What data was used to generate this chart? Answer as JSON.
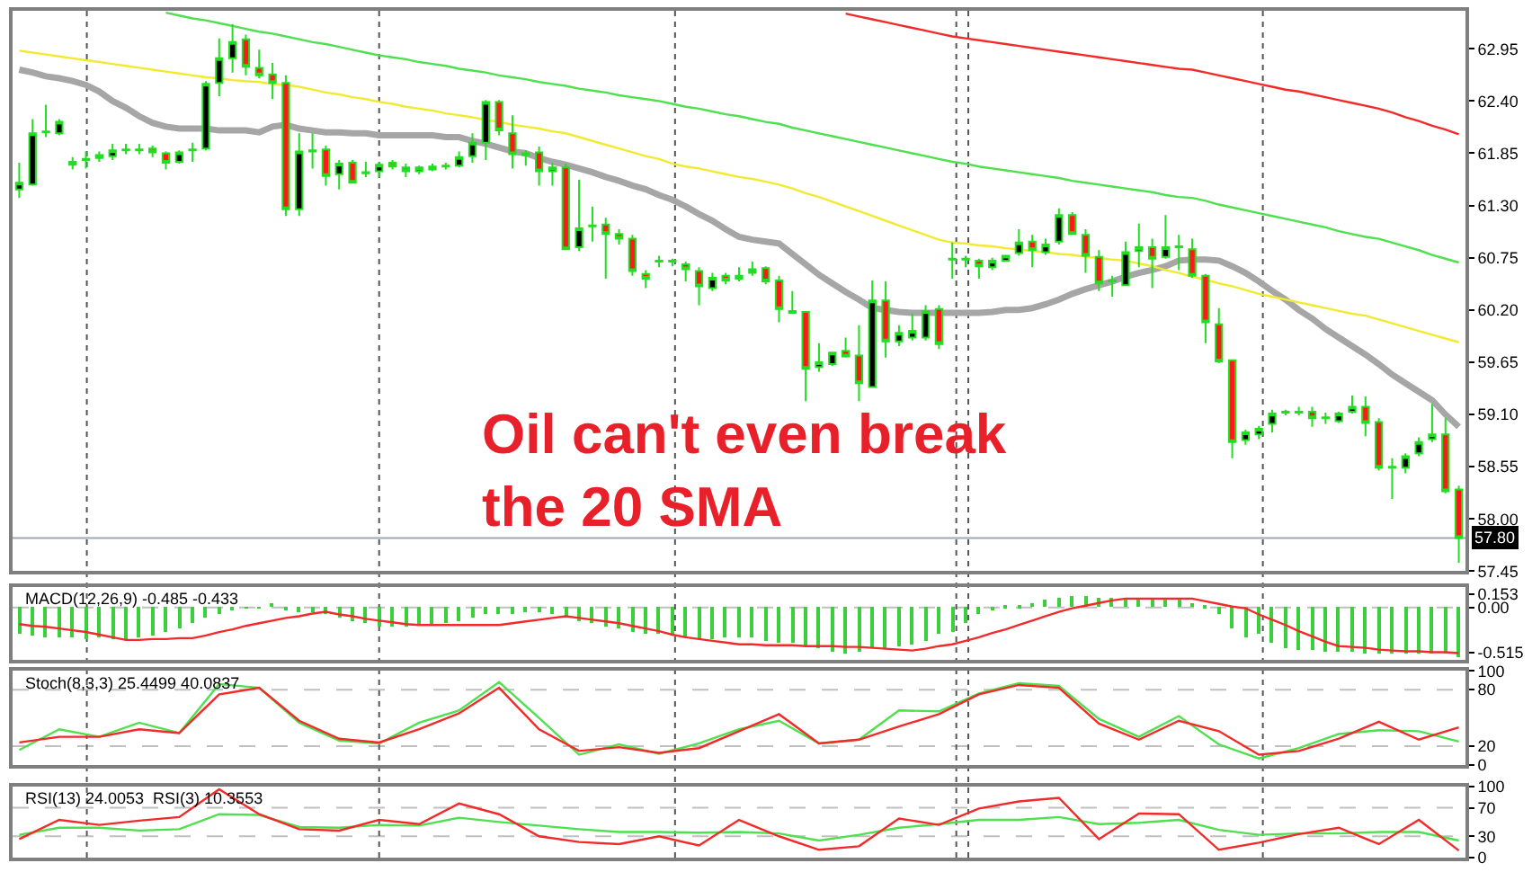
{
  "chart_data": [
    {
      "type": "candlestick",
      "color": "#22dd22",
      "tick_labels": "y",
      "categories": [
        null,
        null,
        null,
        null,
        null,
        null,
        null,
        null,
        null,
        null,
        null,
        null,
        null,
        null,
        null,
        null,
        null,
        null,
        null,
        null,
        null,
        null,
        null,
        null,
        null,
        null,
        null,
        null,
        null,
        null,
        null,
        null,
        null,
        null,
        null,
        null,
        null,
        null,
        null,
        null,
        null,
        null,
        null,
        null,
        null,
        null,
        null,
        null,
        null,
        null,
        null,
        null,
        null,
        null,
        null,
        null,
        null,
        null,
        null,
        null,
        null,
        null,
        null,
        null,
        null,
        null,
        null,
        null,
        null,
        null,
        null,
        null,
        null,
        null,
        null,
        null,
        null,
        null,
        null,
        null,
        null,
        null,
        null,
        null,
        null,
        null,
        null,
        null,
        null,
        null,
        null,
        null,
        null,
        null,
        null,
        null,
        null,
        null,
        null,
        null,
        null,
        null,
        null,
        null,
        null,
        null,
        null,
        null,
        null
      ],
      "ohlc": [
        [
          61.47,
          61.75,
          61.38,
          61.54
        ],
        [
          61.52,
          62.21,
          61.51,
          62.06
        ],
        [
          62.07,
          62.36,
          62.02,
          62.08
        ],
        [
          62.06,
          62.21,
          62.04,
          62.18
        ],
        [
          61.73,
          61.81,
          61.68,
          61.76
        ],
        [
          61.78,
          61.87,
          61.69,
          61.79
        ],
        [
          61.8,
          61.87,
          61.76,
          61.83
        ],
        [
          61.82,
          61.95,
          61.78,
          61.88
        ],
        [
          61.88,
          61.95,
          61.84,
          61.89
        ],
        [
          61.88,
          61.95,
          61.84,
          61.89
        ],
        [
          61.9,
          61.93,
          61.81,
          61.86
        ],
        [
          61.85,
          61.87,
          61.68,
          61.75
        ],
        [
          61.76,
          61.88,
          61.74,
          61.86
        ],
        [
          61.88,
          61.96,
          61.76,
          61.89
        ],
        [
          61.9,
          62.61,
          61.88,
          62.58
        ],
        [
          62.59,
          63.06,
          62.45,
          62.85
        ],
        [
          62.85,
          63.21,
          62.7,
          63.02
        ],
        [
          63.05,
          63.1,
          62.67,
          62.76
        ],
        [
          62.75,
          62.94,
          62.64,
          62.67
        ],
        [
          62.68,
          62.8,
          62.42,
          62.59
        ],
        [
          62.59,
          62.67,
          61.19,
          61.26
        ],
        [
          61.26,
          62.06,
          61.19,
          61.87
        ],
        [
          61.87,
          62.06,
          61.69,
          61.88
        ],
        [
          61.89,
          61.93,
          61.51,
          61.61
        ],
        [
          61.63,
          61.78,
          61.47,
          61.74
        ],
        [
          61.75,
          61.78,
          61.54,
          61.54
        ],
        [
          61.64,
          61.76,
          61.6,
          61.65
        ],
        [
          61.66,
          61.76,
          61.6,
          61.73
        ],
        [
          61.75,
          61.78,
          61.68,
          61.71
        ],
        [
          61.7,
          61.74,
          61.6,
          61.66
        ],
        [
          61.66,
          61.72,
          61.63,
          61.7
        ],
        [
          61.71,
          61.74,
          61.66,
          61.68
        ],
        [
          61.71,
          61.75,
          61.68,
          61.72
        ],
        [
          61.72,
          61.87,
          61.7,
          61.81
        ],
        [
          61.82,
          62.06,
          61.75,
          61.96
        ],
        [
          61.96,
          62.41,
          61.78,
          62.39
        ],
        [
          62.39,
          62.41,
          62.04,
          62.09
        ],
        [
          62.06,
          62.25,
          61.69,
          61.84
        ],
        [
          61.83,
          61.88,
          61.72,
          61.85
        ],
        [
          61.86,
          61.92,
          61.51,
          61.66
        ],
        [
          61.66,
          61.75,
          61.51,
          61.7
        ],
        [
          61.7,
          61.74,
          60.83,
          60.84
        ],
        [
          60.86,
          61.57,
          60.82,
          61.06
        ],
        [
          61.08,
          61.29,
          60.92,
          61.09
        ],
        [
          61.1,
          61.17,
          60.53,
          61.0
        ],
        [
          61.0,
          61.05,
          60.89,
          60.95
        ],
        [
          60.95,
          60.99,
          60.56,
          60.61
        ],
        [
          60.58,
          60.62,
          60.43,
          60.53
        ],
        [
          60.71,
          60.77,
          60.65,
          60.72
        ],
        [
          60.71,
          60.74,
          60.66,
          60.72
        ],
        [
          60.68,
          60.71,
          60.5,
          60.63
        ],
        [
          60.61,
          60.65,
          60.25,
          60.45
        ],
        [
          60.43,
          60.59,
          60.4,
          60.54
        ],
        [
          60.56,
          60.59,
          60.47,
          60.51
        ],
        [
          60.53,
          60.65,
          60.5,
          60.56
        ],
        [
          60.59,
          60.71,
          60.56,
          60.63
        ],
        [
          60.64,
          60.66,
          60.47,
          60.5
        ],
        [
          60.51,
          60.56,
          60.07,
          60.21
        ],
        [
          60.19,
          60.4,
          60.16,
          60.17
        ],
        [
          60.18,
          60.19,
          59.24,
          59.58
        ],
        [
          59.6,
          59.85,
          59.55,
          59.65
        ],
        [
          59.63,
          59.76,
          59.61,
          59.75
        ],
        [
          59.77,
          59.91,
          59.7,
          59.71
        ],
        [
          59.72,
          60.04,
          59.24,
          59.43
        ],
        [
          59.39,
          60.51,
          59.39,
          60.3
        ],
        [
          60.3,
          60.5,
          59.7,
          59.87
        ],
        [
          59.87,
          60.04,
          59.82,
          59.96
        ],
        [
          59.91,
          60.16,
          59.88,
          59.98
        ],
        [
          59.91,
          60.25,
          59.88,
          60.19
        ],
        [
          60.21,
          60.25,
          59.79,
          59.84
        ],
        [
          60.73,
          60.91,
          60.53,
          60.74
        ],
        [
          60.73,
          60.77,
          60.65,
          60.74
        ],
        [
          60.72,
          60.74,
          60.53,
          60.66
        ],
        [
          60.65,
          60.75,
          60.62,
          60.72
        ],
        [
          60.72,
          60.78,
          60.71,
          60.77
        ],
        [
          60.8,
          61.05,
          60.77,
          60.91
        ],
        [
          60.92,
          60.99,
          60.65,
          60.83
        ],
        [
          60.81,
          60.95,
          60.78,
          60.89
        ],
        [
          60.92,
          61.27,
          60.89,
          61.2
        ],
        [
          61.2,
          61.23,
          60.99,
          61.0
        ],
        [
          60.99,
          61.05,
          60.59,
          60.77
        ],
        [
          60.76,
          60.83,
          60.4,
          60.48
        ],
        [
          60.5,
          60.56,
          60.34,
          60.51
        ],
        [
          60.46,
          60.92,
          60.46,
          60.81
        ],
        [
          60.82,
          61.11,
          60.65,
          60.86
        ],
        [
          60.86,
          60.95,
          60.43,
          60.74
        ],
        [
          60.76,
          61.2,
          60.74,
          60.86
        ],
        [
          60.86,
          60.99,
          60.62,
          60.87
        ],
        [
          60.84,
          60.95,
          60.54,
          60.56
        ],
        [
          60.56,
          60.58,
          59.85,
          60.07
        ],
        [
          60.05,
          60.22,
          59.64,
          59.66
        ],
        [
          59.67,
          59.68,
          58.64,
          58.81
        ],
        [
          58.83,
          58.94,
          58.78,
          58.91
        ],
        [
          58.89,
          58.98,
          58.84,
          58.95
        ],
        [
          59.0,
          59.15,
          58.91,
          59.11
        ],
        [
          59.12,
          59.15,
          59.09,
          59.13
        ],
        [
          59.12,
          59.18,
          59.09,
          59.13
        ],
        [
          59.13,
          59.18,
          58.97,
          59.06
        ],
        [
          59.06,
          59.12,
          59.0,
          59.07
        ],
        [
          59.03,
          59.13,
          59.01,
          59.11
        ],
        [
          59.13,
          59.3,
          59.11,
          59.18
        ],
        [
          59.18,
          59.29,
          58.87,
          59.01
        ],
        [
          59.02,
          59.06,
          58.51,
          58.54
        ],
        [
          58.54,
          58.64,
          58.21,
          58.55
        ],
        [
          58.54,
          58.69,
          58.48,
          58.66
        ],
        [
          58.69,
          58.86,
          58.66,
          58.81
        ],
        [
          58.84,
          59.21,
          58.81,
          58.89
        ],
        [
          58.89,
          59.06,
          58.27,
          58.29
        ],
        [
          58.31,
          58.35,
          57.54,
          57.8
        ]
      ],
      "series": [
        {
          "type": "line",
          "color": "#a6a6a6",
          "values": [
            62.73,
            62.7,
            62.66,
            62.64,
            62.61,
            62.57,
            62.5,
            62.4,
            62.33,
            62.24,
            62.17,
            62.13,
            62.11,
            62.11,
            62.11,
            62.09,
            62.09,
            62.09,
            62.07,
            62.13,
            62.15,
            62.11,
            62.09,
            62.07,
            62.07,
            62.06,
            62.06,
            62.04,
            62.04,
            62.04,
            62.04,
            62.04,
            62.02,
            62.02,
            61.98,
            61.95,
            61.91,
            61.87,
            61.85,
            61.8,
            61.76,
            61.73,
            61.69,
            61.65,
            61.6,
            61.56,
            61.51,
            61.47,
            61.41,
            61.36,
            61.29,
            61.21,
            61.14,
            61.05,
            60.97,
            60.94,
            60.92,
            60.9,
            60.79,
            60.68,
            60.57,
            60.48,
            60.39,
            60.31,
            60.22,
            60.2,
            60.18,
            60.17,
            60.17,
            60.17,
            60.17,
            60.17,
            60.17,
            60.18,
            60.2,
            60.2,
            60.22,
            60.26,
            60.31,
            60.37,
            60.42,
            60.46,
            60.5,
            60.55,
            60.59,
            60.62,
            60.66,
            60.72,
            60.73,
            60.73,
            60.72,
            60.66,
            60.59,
            60.5,
            60.4,
            60.31,
            60.2,
            60.11,
            60.0,
            59.91,
            59.82,
            59.73,
            59.63,
            59.52,
            59.43,
            59.34,
            59.25,
            59.1,
            58.97
          ]
        },
        {
          "type": "line",
          "color": "#f2ea30",
          "values": [
            62.93,
            62.91,
            62.89,
            62.87,
            62.85,
            62.83,
            62.81,
            62.79,
            62.77,
            62.75,
            62.73,
            62.71,
            62.69,
            62.67,
            62.65,
            62.64,
            62.62,
            62.61,
            62.6,
            62.58,
            62.57,
            62.55,
            62.52,
            62.49,
            62.47,
            62.44,
            62.42,
            62.39,
            62.37,
            62.34,
            62.32,
            62.3,
            62.27,
            62.25,
            62.23,
            62.2,
            62.18,
            62.15,
            62.13,
            62.11,
            62.08,
            62.06,
            62.02,
            61.98,
            61.94,
            61.9,
            61.86,
            61.82,
            61.79,
            61.74,
            61.71,
            61.69,
            61.66,
            61.63,
            61.6,
            61.58,
            61.55,
            61.52,
            61.48,
            61.43,
            61.39,
            61.34,
            61.29,
            61.24,
            61.19,
            61.14,
            61.09,
            61.04,
            60.99,
            60.94,
            60.91,
            60.9,
            60.88,
            60.87,
            60.85,
            60.84,
            60.82,
            60.81,
            60.79,
            60.78,
            60.76,
            60.75,
            60.73,
            60.72,
            60.69,
            60.66,
            60.62,
            60.59,
            60.55,
            60.52,
            60.48,
            60.45,
            60.41,
            60.37,
            60.34,
            60.31,
            60.28,
            60.25,
            60.22,
            60.19,
            60.16,
            60.14,
            60.1,
            60.06,
            60.02,
            59.98,
            59.94,
            59.9,
            59.86
          ]
        },
        {
          "type": "line",
          "color": "#4ee04e",
          "values": [
            null,
            null,
            null,
            null,
            null,
            null,
            null,
            null,
            null,
            null,
            null,
            63.33,
            63.3,
            63.27,
            63.25,
            63.22,
            63.19,
            63.16,
            63.13,
            63.11,
            63.08,
            63.05,
            63.02,
            63.0,
            62.97,
            62.94,
            62.91,
            62.88,
            62.86,
            62.84,
            62.81,
            62.79,
            62.77,
            62.74,
            62.72,
            62.7,
            62.67,
            62.65,
            62.63,
            62.6,
            62.58,
            62.56,
            62.53,
            62.51,
            62.49,
            62.46,
            62.44,
            62.42,
            62.4,
            62.37,
            62.34,
            62.32,
            62.29,
            62.26,
            62.24,
            62.21,
            62.18,
            62.16,
            62.12,
            62.09,
            62.06,
            62.03,
            62.0,
            61.97,
            61.94,
            61.91,
            61.88,
            61.85,
            61.82,
            61.79,
            61.76,
            61.74,
            61.71,
            61.69,
            61.67,
            61.65,
            61.63,
            61.61,
            61.59,
            61.56,
            61.54,
            61.52,
            61.5,
            61.48,
            61.46,
            61.44,
            61.41,
            61.39,
            61.38,
            61.35,
            61.31,
            61.28,
            61.25,
            61.22,
            61.19,
            61.16,
            61.13,
            61.1,
            61.07,
            61.03,
            61.0,
            60.97,
            60.95,
            60.91,
            60.87,
            60.83,
            60.78,
            60.74,
            60.7
          ]
        },
        {
          "type": "line",
          "color": "#f22a2a",
          "values": [
            null,
            null,
            null,
            null,
            null,
            null,
            null,
            null,
            null,
            null,
            null,
            null,
            null,
            null,
            null,
            null,
            null,
            null,
            null,
            null,
            null,
            null,
            null,
            null,
            null,
            null,
            null,
            null,
            null,
            null,
            null,
            null,
            null,
            null,
            null,
            null,
            null,
            null,
            null,
            null,
            null,
            null,
            null,
            null,
            null,
            null,
            null,
            null,
            null,
            null,
            null,
            null,
            null,
            null,
            null,
            null,
            null,
            null,
            null,
            null,
            null,
            null,
            63.32,
            63.29,
            63.26,
            63.23,
            63.2,
            63.17,
            63.14,
            63.11,
            63.08,
            63.06,
            63.04,
            63.02,
            63.0,
            62.98,
            62.96,
            62.94,
            62.92,
            62.9,
            62.88,
            62.86,
            62.84,
            62.82,
            62.8,
            62.78,
            62.76,
            62.74,
            62.73,
            62.7,
            62.67,
            62.64,
            62.61,
            62.58,
            62.55,
            62.52,
            62.5,
            62.47,
            62.44,
            62.41,
            62.38,
            62.35,
            62.32,
            62.28,
            62.23,
            62.19,
            62.14,
            62.1,
            62.05
          ]
        }
      ],
      "ylim": [
        57.45,
        63.35
      ],
      "yticks": [
        62.95,
        {
          "value": 62.4,
          "label": "62.40"
        },
        61.85,
        {
          "value": 61.3,
          "label": "61.30"
        },
        60.75,
        {
          "value": 60.2,
          "label": "60.20"
        },
        59.65,
        {
          "value": 59.1,
          "label": "59.10"
        },
        58.55,
        {
          "value": 58,
          "label": "58.00"
        },
        57.45
      ],
      "ref_lines": [
        {
          "axis": "y",
          "value": 57.8,
          "label": "57.80",
          "color": "#a0a8b4"
        }
      ],
      "annotations": [
        "Oil can't even break\nthe 20 SMA"
      ]
    },
    {
      "type": "bar",
      "title": "MACD(12,26,9) -0.485 -0.433",
      "tick_labels": "y",
      "categories": [
        null,
        null,
        null,
        null,
        null,
        null,
        null,
        null,
        null,
        null,
        null,
        null,
        null,
        null,
        null,
        null,
        null,
        null,
        null,
        null,
        null,
        null,
        null,
        null,
        null,
        null,
        null,
        null,
        null,
        null,
        null,
        null,
        null,
        null,
        null,
        null,
        null,
        null,
        null,
        null,
        null,
        null,
        null,
        null,
        null,
        null,
        null,
        null,
        null,
        null,
        null,
        null,
        null,
        null,
        null,
        null,
        null,
        null,
        null,
        null,
        null,
        null,
        null,
        null,
        null,
        null,
        null,
        null,
        null,
        null,
        null,
        null,
        null,
        null,
        null,
        null,
        null,
        null,
        null,
        null,
        null,
        null,
        null,
        null,
        null,
        null,
        null,
        null,
        null,
        null,
        null,
        null,
        null,
        null,
        null,
        null,
        null,
        null,
        null,
        null,
        null,
        null,
        null,
        null,
        null,
        null,
        null,
        null,
        null
      ],
      "series": [
        {
          "type": "bar",
          "color": "#3ccf3c",
          "values": [
            -0.31,
            -0.33,
            -0.34,
            -0.34,
            -0.34,
            -0.37,
            -0.35,
            -0.37,
            -0.37,
            -0.35,
            -0.33,
            -0.28,
            -0.24,
            -0.18,
            -0.12,
            -0.08,
            -0.03,
            -0.01,
            -0.01,
            0.05,
            -0.02,
            -0.05,
            -0.05,
            -0.08,
            -0.12,
            -0.15,
            -0.18,
            -0.21,
            -0.21,
            -0.21,
            -0.2,
            -0.2,
            -0.18,
            -0.15,
            -0.12,
            -0.08,
            -0.08,
            -0.08,
            -0.05,
            -0.05,
            -0.08,
            -0.12,
            -0.15,
            -0.18,
            -0.21,
            -0.24,
            -0.28,
            -0.31,
            -0.31,
            -0.33,
            -0.34,
            -0.37,
            -0.37,
            -0.35,
            -0.34,
            -0.34,
            -0.39,
            -0.41,
            -0.41,
            -0.44,
            -0.47,
            -0.5,
            -0.53,
            -0.5,
            -0.47,
            -0.46,
            -0.44,
            -0.42,
            -0.39,
            -0.31,
            -0.28,
            -0.18,
            -0.08,
            -0.03,
            0.01,
            0.01,
            0.05,
            0.08,
            0.11,
            0.13,
            0.13,
            0.1,
            0.1,
            0.08,
            0.11,
            0.08,
            0.08,
            0.1,
            0.05,
            0.03,
            -0.07,
            -0.24,
            -0.34,
            -0.31,
            -0.41,
            -0.46,
            -0.48,
            -0.48,
            -0.5,
            -0.5,
            -0.5,
            -0.52,
            -0.53,
            -0.53,
            -0.53,
            -0.53,
            -0.53,
            -0.53,
            -0.57
          ]
        },
        {
          "type": "line",
          "color": "#f22a2a",
          "values": [
            -0.19,
            -0.21,
            -0.22,
            -0.24,
            -0.26,
            -0.28,
            -0.31,
            -0.34,
            -0.37,
            -0.37,
            -0.36,
            -0.36,
            -0.35,
            -0.35,
            -0.32,
            -0.28,
            -0.25,
            -0.21,
            -0.18,
            -0.15,
            -0.12,
            -0.1,
            -0.07,
            -0.05,
            -0.08,
            -0.1,
            -0.13,
            -0.15,
            -0.17,
            -0.19,
            -0.2,
            -0.2,
            -0.2,
            -0.2,
            -0.2,
            -0.2,
            -0.2,
            -0.18,
            -0.16,
            -0.14,
            -0.12,
            -0.1,
            -0.12,
            -0.14,
            -0.16,
            -0.18,
            -0.21,
            -0.24,
            -0.27,
            -0.31,
            -0.34,
            -0.36,
            -0.38,
            -0.4,
            -0.42,
            -0.42,
            -0.43,
            -0.43,
            -0.43,
            -0.44,
            -0.44,
            -0.44,
            -0.45,
            -0.45,
            -0.46,
            -0.47,
            -0.48,
            -0.49,
            -0.47,
            -0.44,
            -0.42,
            -0.38,
            -0.34,
            -0.29,
            -0.25,
            -0.2,
            -0.15,
            -0.1,
            -0.05,
            -0.01,
            0.02,
            0.05,
            0.08,
            0.1,
            0.1,
            0.1,
            0.1,
            0.1,
            0.1,
            0.07,
            0.04,
            0.01,
            -0.01,
            -0.08,
            -0.14,
            -0.2,
            -0.27,
            -0.33,
            -0.39,
            -0.44,
            -0.45,
            -0.46,
            -0.48,
            -0.49,
            -0.5,
            -0.5,
            -0.51,
            -0.51,
            -0.52
          ]
        }
      ],
      "ylim": [
        -0.6,
        0.23
      ],
      "yticks": [
        0.153,
        {
          "value": 0,
          "label": "0.00"
        },
        -0.515
      ],
      "ref_lines": [
        {
          "axis": "y",
          "value": 0,
          "color": "#c0c0c0",
          "line_style": "dashed"
        }
      ]
    },
    {
      "type": "line",
      "title": "Stoch(8,3,3) 25.4499 40.0837",
      "tick_labels": "y",
      "categories": [
        null,
        null,
        null,
        null,
        null,
        null,
        null,
        null,
        null,
        null,
        null,
        null,
        null,
        null,
        null,
        null,
        null,
        null,
        null,
        null,
        null,
        null,
        null,
        null,
        null,
        null,
        null,
        null,
        null,
        null,
        null,
        null,
        null,
        null,
        null,
        null,
        null
      ],
      "series": [
        {
          "color": "#4ee04e",
          "values": [
            16,
            38,
            30,
            45,
            34,
            86,
            82,
            45,
            26,
            23,
            45,
            58,
            88,
            50,
            11,
            22,
            12,
            23,
            38,
            47,
            23,
            27,
            58,
            57,
            76,
            87,
            84,
            49,
            30,
            52,
            22,
            7,
            18,
            33,
            37,
            36,
            25
          ]
        },
        {
          "color": "#f22a2a",
          "values": [
            24,
            30,
            30,
            38,
            34,
            75,
            82,
            47,
            28,
            24,
            38,
            55,
            82,
            38,
            15,
            19,
            13,
            18,
            36,
            54,
            23,
            27,
            41,
            54,
            75,
            85,
            82,
            44,
            27,
            47,
            36,
            11,
            15,
            28,
            46,
            27,
            40
          ]
        }
      ],
      "ylim": [
        0,
        100
      ],
      "yticks": [
        100,
        80,
        20,
        0
      ],
      "ref_lines": [
        {
          "axis": "y",
          "value": 80,
          "color": "#c0c0c0",
          "line_style": "dashed"
        },
        {
          "axis": "y",
          "value": 20,
          "color": "#c0c0c0",
          "line_style": "dashed"
        }
      ]
    },
    {
      "type": "line",
      "title": "RSI(13) 24.0053  RSI(3) 10.3553",
      "tick_labels": "y",
      "categories": [
        null,
        null,
        null,
        null,
        null,
        null,
        null,
        null,
        null,
        null,
        null,
        null,
        null,
        null,
        null,
        null,
        null,
        null,
        null,
        null,
        null,
        null,
        null,
        null,
        null,
        null,
        null,
        null,
        null,
        null,
        null,
        null,
        null,
        null,
        null,
        null,
        null
      ],
      "series": [
        {
          "color": "#4ee04e",
          "values": [
            32,
            42,
            42,
            38,
            40,
            61,
            60,
            43,
            42,
            46,
            45,
            56,
            50,
            45,
            40,
            36,
            36,
            35,
            36,
            34,
            24,
            32,
            42,
            47,
            53,
            53,
            57,
            47,
            49,
            53,
            39,
            32,
            34,
            34,
            36,
            36,
            24
          ]
        },
        {
          "color": "#f22a2a",
          "values": [
            26,
            53,
            46,
            52,
            57,
            96,
            61,
            40,
            38,
            53,
            47,
            76,
            61,
            30,
            22,
            19,
            30,
            17,
            53,
            30,
            11,
            16,
            55,
            46,
            69,
            79,
            84,
            26,
            62,
            61,
            11,
            21,
            33,
            42,
            19,
            53,
            10
          ]
        }
      ],
      "ylim": [
        0,
        100
      ],
      "yticks": [
        100,
        70,
        30,
        0
      ],
      "ref_lines": [
        {
          "axis": "y",
          "value": 70,
          "color": "#c0c0c0",
          "line_style": "dashed"
        },
        {
          "axis": "y",
          "value": 30,
          "color": "#c0c0c0",
          "line_style": "dashed"
        }
      ]
    }
  ]
}
